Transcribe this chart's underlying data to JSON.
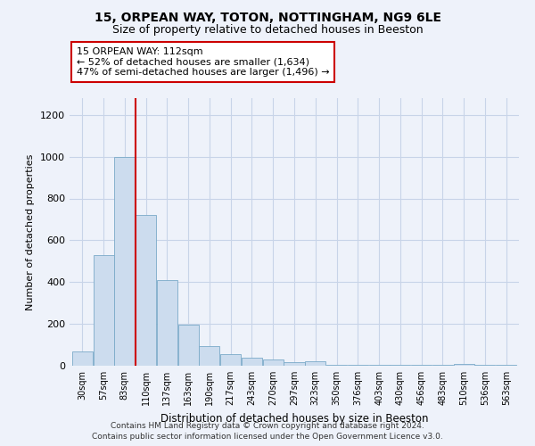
{
  "title1": "15, ORPEAN WAY, TOTON, NOTTINGHAM, NG9 6LE",
  "title2": "Size of property relative to detached houses in Beeston",
  "xlabel": "Distribution of detached houses by size in Beeston",
  "ylabel": "Number of detached properties",
  "categories": [
    "30sqm",
    "57sqm",
    "83sqm",
    "110sqm",
    "137sqm",
    "163sqm",
    "190sqm",
    "217sqm",
    "243sqm",
    "270sqm",
    "297sqm",
    "323sqm",
    "350sqm",
    "376sqm",
    "403sqm",
    "430sqm",
    "456sqm",
    "483sqm",
    "510sqm",
    "536sqm",
    "563sqm"
  ],
  "values": [
    68,
    530,
    1000,
    720,
    408,
    197,
    93,
    57,
    40,
    30,
    15,
    20,
    3,
    3,
    3,
    3,
    3,
    3,
    10,
    3,
    3
  ],
  "bar_color": "#ccdcee",
  "bar_edge_color": "#7aaac8",
  "vline_index": 2.5,
  "annotation_text": "15 ORPEAN WAY: 112sqm\n← 52% of detached houses are smaller (1,634)\n47% of semi-detached houses are larger (1,496) →",
  "annotation_box_color": "#ffffff",
  "annotation_box_edge_color": "#cc0000",
  "vline_color": "#cc0000",
  "grid_color": "#c8d4e8",
  "footer1": "Contains HM Land Registry data © Crown copyright and database right 2024.",
  "footer2": "Contains public sector information licensed under the Open Government Licence v3.0.",
  "ylim": [
    0,
    1280
  ],
  "yticks": [
    0,
    200,
    400,
    600,
    800,
    1000,
    1200
  ],
  "background_color": "#eef2fa",
  "title_fontsize": 10,
  "subtitle_fontsize": 9
}
